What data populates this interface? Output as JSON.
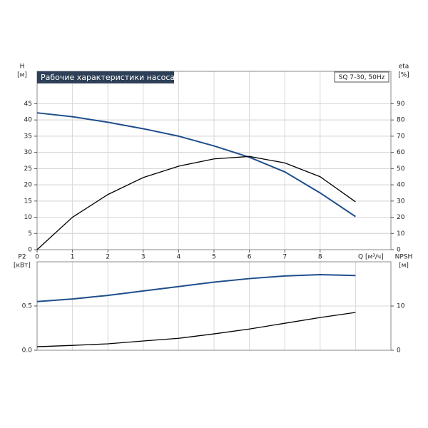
{
  "chart_data": [
    {
      "type": "line",
      "title": "Рабочие характеристики насоса",
      "subtitle": "SQ 7-30, 50Hz",
      "ylabel": "H",
      "yunit": "[м]",
      "y2label": "eta",
      "y2unit": "[%]",
      "xlabel": "Q [м³/ч]",
      "x": [
        0,
        1,
        2,
        3,
        4,
        5,
        6,
        7,
        8,
        9
      ],
      "xlim": [
        0,
        10
      ],
      "xticks": [
        0,
        1,
        2,
        3,
        4,
        5,
        6,
        7,
        8
      ],
      "ylim": [
        0,
        55
      ],
      "yticks": [
        0,
        5,
        10,
        15,
        20,
        25,
        30,
        35,
        40,
        45
      ],
      "y2lim": [
        0,
        110
      ],
      "y2ticks": [
        0,
        10,
        20,
        30,
        40,
        50,
        60,
        70,
        80,
        90
      ],
      "grid": true,
      "series": [
        {
          "name": "H",
          "color": "#1f4e8c",
          "values": [
            42.2,
            41,
            39.3,
            37.3,
            35,
            32,
            28.5,
            24,
            17.5,
            10.2
          ]
        },
        {
          "name": "eta",
          "color": "#000000",
          "axis": "y2",
          "values": [
            0,
            20,
            34,
            44.5,
            51.5,
            56,
            57.5,
            53.5,
            45,
            29.5
          ]
        }
      ]
    },
    {
      "type": "line",
      "ylabel": "P2",
      "yunit": "[кВт]",
      "y2label": "NPSH",
      "y2unit": "[м]",
      "x": [
        0,
        1,
        2,
        3,
        4,
        5,
        6,
        7,
        8,
        9
      ],
      "xlim": [
        0,
        10
      ],
      "ylim": [
        0,
        1
      ],
      "yticks": [
        {
          "value": 0,
          "label": "0.0"
        },
        0.5
      ],
      "y2lim": [
        0,
        20
      ],
      "y2ticks": [
        0,
        10
      ],
      "grid": true,
      "series": [
        {
          "name": "P2",
          "color": "#1f4e8c",
          "values": [
            0.55,
            0.58,
            0.62,
            0.67,
            0.72,
            0.77,
            0.81,
            0.84,
            0.855,
            0.845
          ]
        },
        {
          "name": "NPSH",
          "color": "#000000",
          "axis": "y2",
          "values": [
            0.8,
            1.1,
            1.45,
            2.1,
            2.7,
            3.7,
            4.8,
            6.1,
            7.4,
            8.55
          ]
        }
      ]
    }
  ]
}
